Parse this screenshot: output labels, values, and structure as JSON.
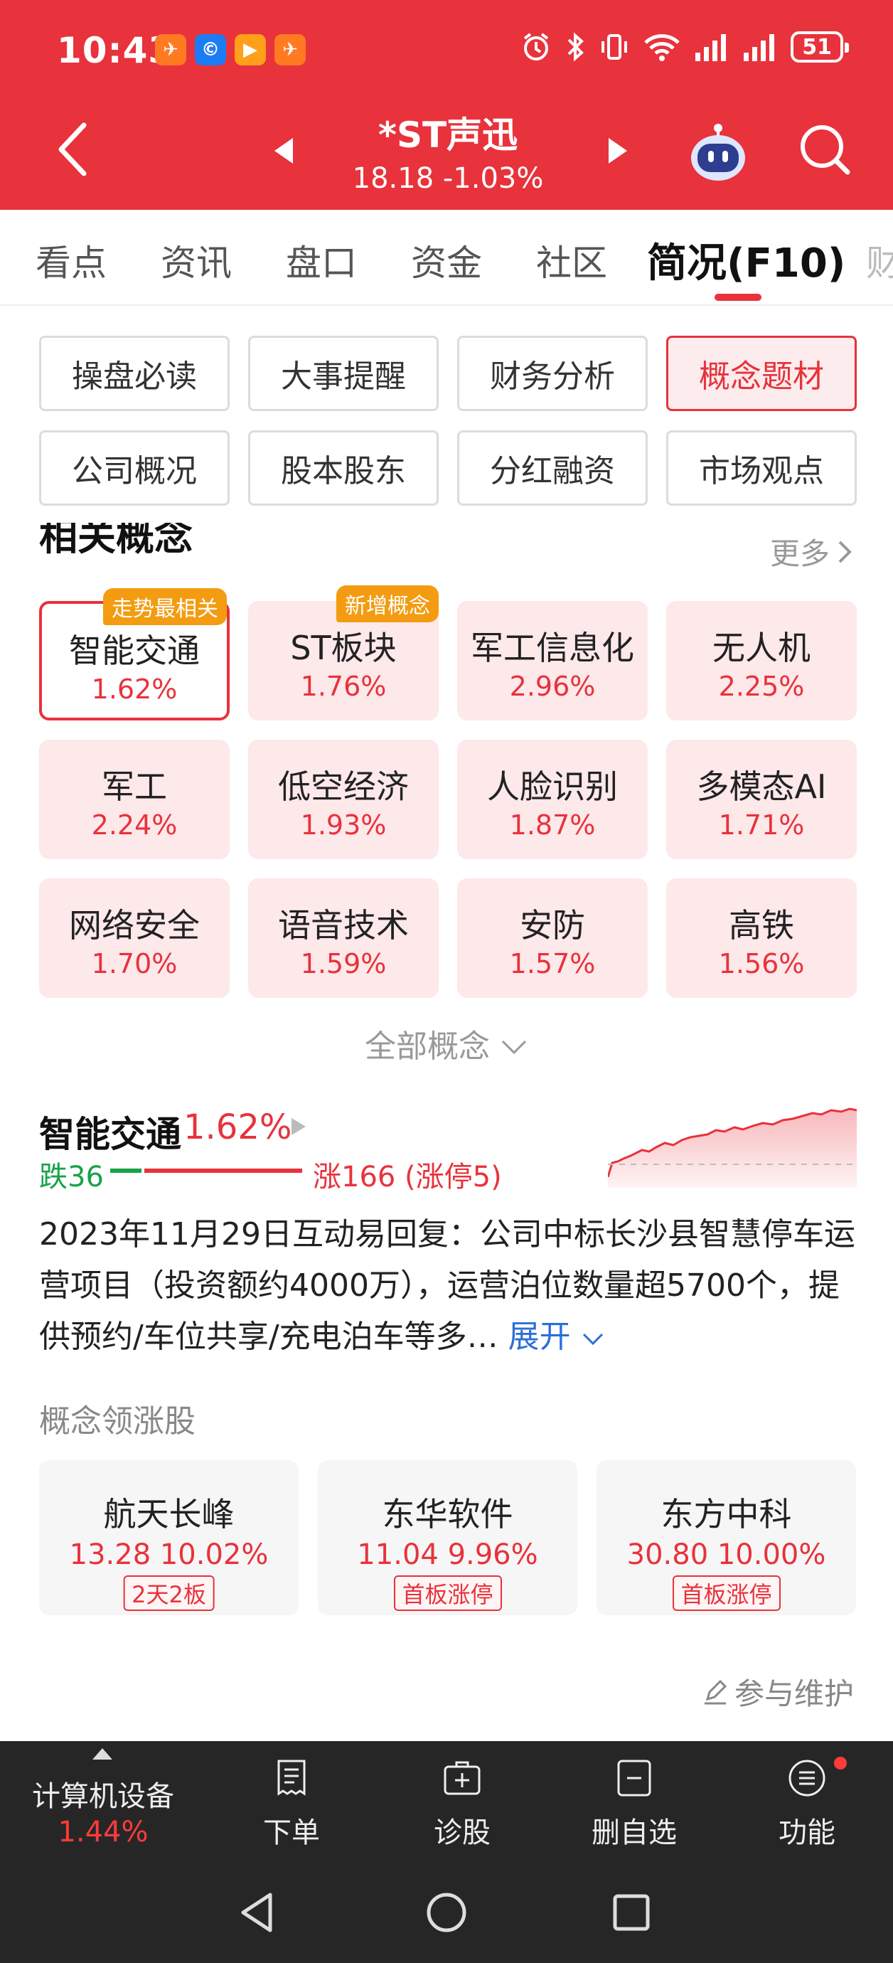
{
  "status_bar": {
    "time": "10:43",
    "battery": "51",
    "notification_icons": [
      "flying-envelope-icon",
      "c-app-icon",
      "play-app-icon",
      "flying-envelope-icon"
    ],
    "system_icons": [
      "alarm-icon",
      "bluetooth-icon",
      "vibrate-icon",
      "wifi-icon",
      "signal-icon",
      "signal-icon"
    ]
  },
  "header": {
    "stock_name": "*ST声迅",
    "quote": "18.18  -1.03%"
  },
  "tabs": [
    {
      "label": "看点"
    },
    {
      "label": "资讯"
    },
    {
      "label": "盘口"
    },
    {
      "label": "资金"
    },
    {
      "label": "社区"
    },
    {
      "label": "简况(F10)"
    },
    {
      "label": "财"
    }
  ],
  "active_tab": "简况(F10)",
  "sections": [
    {
      "label": "操盘必读"
    },
    {
      "label": "大事提醒"
    },
    {
      "label": "财务分析"
    },
    {
      "label": "概念题材"
    },
    {
      "label": "公司概况"
    },
    {
      "label": "股本股东"
    },
    {
      "label": "分红融资"
    },
    {
      "label": "市场观点"
    }
  ],
  "active_section": "概念题材",
  "concepts": {
    "title": "相关概念",
    "more": "更多",
    "items": [
      {
        "name": "智能交通",
        "pct": "1.62%",
        "badge": "走势最相关"
      },
      {
        "name": "ST板块",
        "pct": "1.76%",
        "badge": "新增概念"
      },
      {
        "name": "军工信息化",
        "pct": "2.96%"
      },
      {
        "name": "无人机",
        "pct": "2.25%"
      },
      {
        "name": "军工",
        "pct": "2.24%"
      },
      {
        "name": "低空经济",
        "pct": "1.93%"
      },
      {
        "name": "人脸识别",
        "pct": "1.87%"
      },
      {
        "name": "多模态AI",
        "pct": "1.71%"
      },
      {
        "name": "网络安全",
        "pct": "1.70%"
      },
      {
        "name": "语音技术",
        "pct": "1.59%"
      },
      {
        "name": "安防",
        "pct": "1.57%"
      },
      {
        "name": "高铁",
        "pct": "1.56%"
      }
    ],
    "all_label": "全部概念"
  },
  "detail": {
    "name": "智能交通",
    "pct": "1.62%",
    "fall": "跌36",
    "rise": "涨166 (涨停5)",
    "fall_count": 36,
    "rise_count": 166,
    "description": "2023年11月29日互动易回复：公司中标长沙县智慧停车运营项目（投资额约4000万），运营泊位数量超5700个，提供预约/车位共享/充电泊车等多…",
    "expand": "展开"
  },
  "leaders": {
    "title": "概念领涨股",
    "items": [
      {
        "name": "航天长峰",
        "quote": "13.28 10.02%",
        "tag": "2天2板"
      },
      {
        "name": "东华软件",
        "quote": "11.04 9.96%",
        "tag": "首板涨停"
      },
      {
        "name": "东方中科",
        "quote": "30.80 10.00%",
        "tag": "首板涨停"
      }
    ]
  },
  "maintain": "参与维护",
  "toolbar": {
    "sector_name": "计算机设备",
    "sector_pct": "1.44%",
    "tools": [
      {
        "label": "下单"
      },
      {
        "label": "诊股"
      },
      {
        "label": "删自选"
      },
      {
        "label": "功能"
      }
    ]
  },
  "colors": {
    "brand_red": "#e8323c",
    "up": "#e8323c",
    "down": "#17a34a",
    "badge_orange": "#f39c12",
    "link_blue": "#2b6fd8"
  }
}
